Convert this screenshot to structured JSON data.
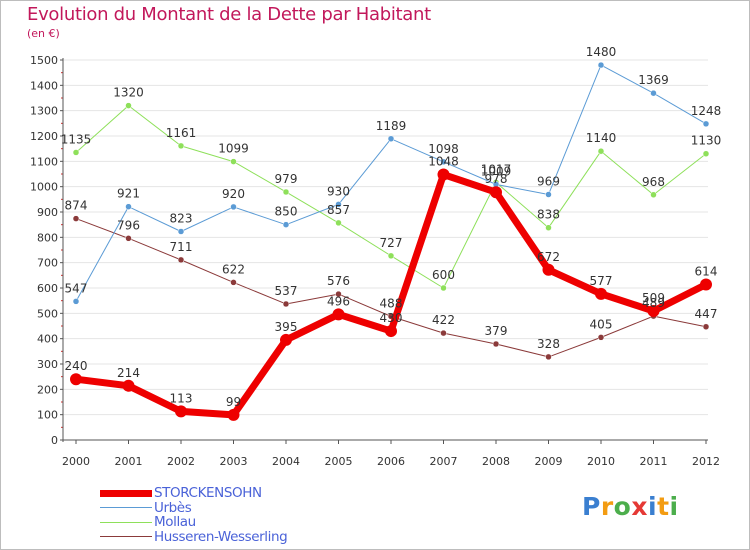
{
  "title": "Evolution du Montant de la Dette par Habitant",
  "unit_label": "(en €)",
  "chart_data": {
    "type": "line",
    "x": [
      2000,
      2001,
      2002,
      2003,
      2004,
      2005,
      2006,
      2007,
      2008,
      2009,
      2010,
      2011,
      2012
    ],
    "ylim": [
      0,
      1500
    ],
    "yticks": [
      0,
      100,
      200,
      300,
      400,
      500,
      600,
      700,
      800,
      900,
      1000,
      1100,
      1200,
      1300,
      1400,
      1500
    ],
    "grid": true,
    "legend_position": "bottom-left",
    "series": [
      {
        "name": "Husseren-Wesserling",
        "color": "#8b3a3a",
        "width": 1,
        "values": [
          874,
          796,
          711,
          622,
          537,
          576,
          488,
          422,
          379,
          328,
          405,
          489,
          447
        ]
      },
      {
        "name": "Mollau",
        "color": "#8ee05a",
        "width": 1,
        "values": [
          1135,
          1320,
          1161,
          1099,
          979,
          857,
          727,
          600,
          1017,
          838,
          1140,
          968,
          1130
        ]
      },
      {
        "name": "Urbès",
        "color": "#5b9bd5",
        "width": 1,
        "values": [
          547,
          921,
          823,
          920,
          850,
          930,
          1189,
          1098,
          1009,
          969,
          1480,
          1369,
          1248
        ]
      },
      {
        "name": "STORCKENSOHN",
        "color": "#ee0000",
        "width": 7,
        "values": [
          240,
          214,
          113,
          99,
          395,
          496,
          430,
          1048,
          978,
          672,
          577,
          509,
          614
        ]
      }
    ]
  },
  "legend": [
    {
      "label": "STORCKENSOHN",
      "color": "#ee0000",
      "text_color": "#4a62d8",
      "thick": true
    },
    {
      "label": "Urbès",
      "color": "#5b9bd5",
      "text_color": "#4a62d8",
      "thick": false
    },
    {
      "label": "Mollau",
      "color": "#8ee05a",
      "text_color": "#4a62d8",
      "thick": false
    },
    {
      "label": "Husseren-Wesserling",
      "color": "#8b3a3a",
      "text_color": "#4a62d8",
      "thick": false
    }
  ],
  "logo": {
    "text": "Proxiti",
    "letters": [
      {
        "ch": "P",
        "color": "#3a7fd0"
      },
      {
        "ch": "r",
        "color": "#f39c12"
      },
      {
        "ch": "o",
        "color": "#4cae4c"
      },
      {
        "ch": "x",
        "color": "#e53935"
      },
      {
        "ch": "i",
        "color": "#3a7fd0"
      },
      {
        "ch": "t",
        "color": "#f39c12"
      },
      {
        "ch": "i",
        "color": "#4cae4c"
      }
    ]
  }
}
